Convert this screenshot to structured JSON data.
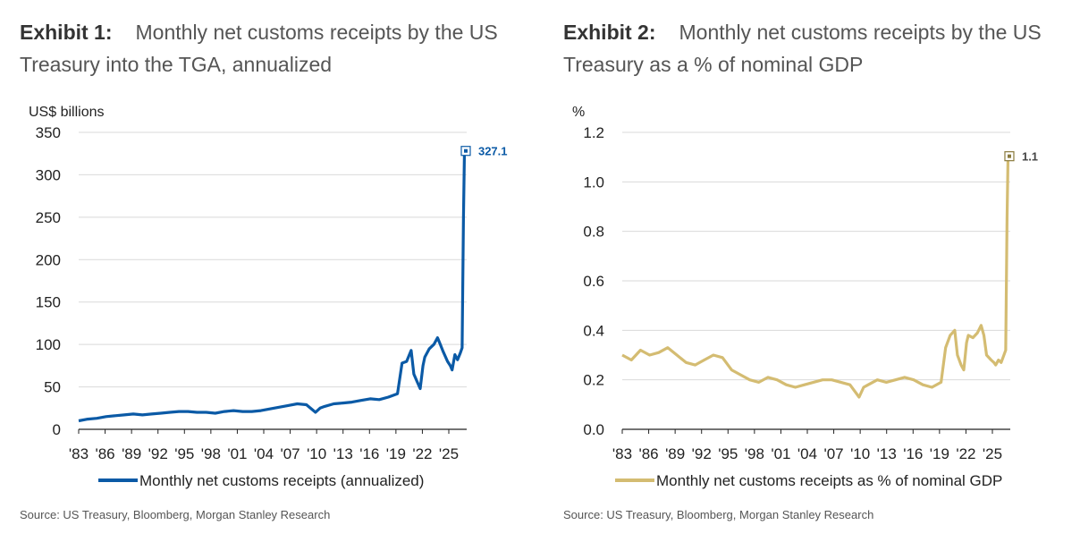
{
  "colors": {
    "blue": "#0b5aa6",
    "gold": "#d4bc72",
    "grid": "#d9d9d9",
    "axis": "#222222"
  },
  "chart_data": [
    {
      "type": "line",
      "exhibit": "Exhibit 1:",
      "title": "Monthly net customs receipts by the US Treasury into the TGA, annualized",
      "ylabel": "US$ billions",
      "ylim": [
        0,
        350
      ],
      "yticks": [
        "0",
        "50",
        "100",
        "150",
        "200",
        "250",
        "300",
        "350"
      ],
      "xticks": [
        "'83",
        "'86",
        "'89",
        "'92",
        "'95",
        "'98",
        "'01",
        "'04",
        "'07",
        "'10",
        "'13",
        "'16",
        "'19",
        "'22",
        "'25"
      ],
      "xlim": [
        1983,
        2025.6
      ],
      "grid": true,
      "legend_position": "bottom",
      "series": [
        {
          "name": "Monthly net customs receipts (annualized)",
          "color": "#0b5aa6",
          "x": [
            1983.0,
            1984.0,
            1985.0,
            1986.0,
            1987.0,
            1988.0,
            1989.0,
            1990.0,
            1991.0,
            1992.0,
            1993.0,
            1994.0,
            1995.0,
            1996.0,
            1997.0,
            1998.0,
            1999.0,
            2000.0,
            2001.0,
            2002.0,
            2003.0,
            2004.0,
            2005.0,
            2006.0,
            2007.0,
            2008.0,
            2009.0,
            2009.5,
            2010.0,
            2011.0,
            2012.0,
            2013.0,
            2014.0,
            2015.0,
            2016.0,
            2017.0,
            2018.0,
            2018.5,
            2019.0,
            2019.5,
            2019.8,
            2020.2,
            2020.5,
            2020.8,
            2021.0,
            2021.5,
            2022.0,
            2022.4,
            2022.7,
            2023.0,
            2023.5,
            2023.8,
            2024.0,
            2024.3,
            2024.6,
            2024.9,
            2025.1,
            2025.25,
            2025.35,
            2025.5
          ],
          "values": [
            10,
            12,
            13,
            15,
            16,
            17,
            18,
            17,
            18,
            19,
            20,
            21,
            21,
            20,
            20,
            19,
            21,
            22,
            21,
            21,
            22,
            24,
            26,
            28,
            30,
            29,
            20,
            25,
            27,
            30,
            31,
            32,
            34,
            36,
            35,
            38,
            42,
            78,
            80,
            93,
            65,
            55,
            48,
            75,
            85,
            95,
            100,
            108,
            100,
            92,
            80,
            75,
            70,
            88,
            82,
            90,
            96,
            250,
            327.1,
            327.1
          ]
        }
      ],
      "annotation": {
        "label": "327.1",
        "x": 2025.5,
        "y": 327.1
      }
    },
    {
      "type": "line",
      "exhibit": "Exhibit 2:",
      "title": "Monthly net customs receipts by the US Treasury as a % of nominal GDP",
      "ylabel": "%",
      "ylim": [
        0,
        1.2
      ],
      "yticks": [
        "0.0",
        "0.2",
        "0.4",
        "0.6",
        "0.8",
        "1.0",
        "1.2"
      ],
      "xticks": [
        "'83",
        "'86",
        "'89",
        "'92",
        "'95",
        "'98",
        "'01",
        "'04",
        "'07",
        "'10",
        "'13",
        "'16",
        "'19",
        "'22",
        "'25"
      ],
      "xlim": [
        1983,
        2025.6
      ],
      "grid": true,
      "legend_position": "bottom",
      "series": [
        {
          "name": "Monthly net customs receipts as % of nominal GDP",
          "color": "#d4bc72",
          "x": [
            1983.0,
            1984.0,
            1985.0,
            1986.0,
            1987.0,
            1988.0,
            1989.0,
            1990.0,
            1991.0,
            1992.0,
            1993.0,
            1994.0,
            1995.0,
            1996.0,
            1997.0,
            1998.0,
            1999.0,
            2000.0,
            2001.0,
            2002.0,
            2003.0,
            2004.0,
            2005.0,
            2006.0,
            2007.0,
            2008.0,
            2009.0,
            2009.5,
            2010.0,
            2011.0,
            2012.0,
            2013.0,
            2014.0,
            2015.0,
            2016.0,
            2017.0,
            2018.0,
            2018.5,
            2019.0,
            2019.5,
            2019.8,
            2020.2,
            2020.5,
            2020.8,
            2021.0,
            2021.5,
            2022.0,
            2022.4,
            2022.7,
            2023.0,
            2023.5,
            2023.8,
            2024.0,
            2024.3,
            2024.6,
            2024.9,
            2025.1,
            2025.25,
            2025.35,
            2025.5
          ],
          "values": [
            0.3,
            0.28,
            0.32,
            0.3,
            0.31,
            0.33,
            0.3,
            0.27,
            0.26,
            0.28,
            0.3,
            0.29,
            0.24,
            0.22,
            0.2,
            0.19,
            0.21,
            0.2,
            0.18,
            0.17,
            0.18,
            0.19,
            0.2,
            0.2,
            0.19,
            0.18,
            0.13,
            0.17,
            0.18,
            0.2,
            0.19,
            0.2,
            0.21,
            0.2,
            0.18,
            0.17,
            0.19,
            0.33,
            0.38,
            0.4,
            0.3,
            0.26,
            0.24,
            0.35,
            0.38,
            0.37,
            0.39,
            0.42,
            0.38,
            0.3,
            0.28,
            0.27,
            0.26,
            0.28,
            0.27,
            0.3,
            0.32,
            0.85,
            1.1,
            1.1
          ]
        }
      ],
      "annotation": {
        "label": "1.1",
        "x": 2025.5,
        "y": 1.1
      }
    }
  ],
  "footer": {
    "source": "Source: US Treasury, Bloomberg, Morgan Stanley Research"
  }
}
